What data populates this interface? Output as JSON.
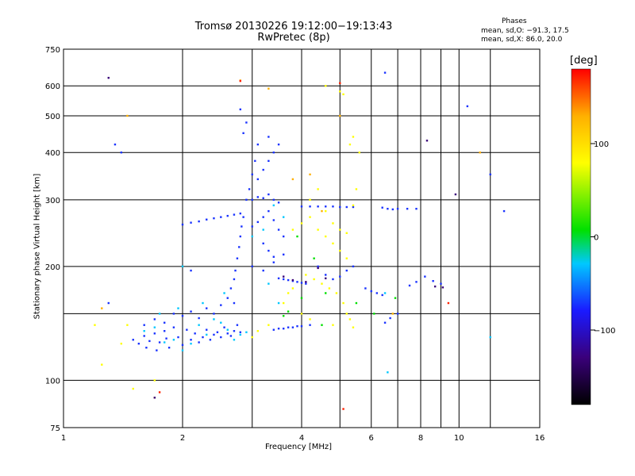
{
  "header": {
    "title_line1": "Tromsø 20130226 19:12:00−19:13:43",
    "title_line2": "RwPretec (8p)"
  },
  "phases_box": {
    "title": "Phases",
    "line_o": "mean, sd,O: −91.3, 17.5",
    "line_x": "mean, sd,X:  86.0, 20.0"
  },
  "chart_data": {
    "type": "scatter",
    "title": "Tromsø 20130226 19:12:00−19:13:43",
    "subtitle": "RwPretec (8p)",
    "xlabel": "Frequency [MHz]",
    "ylabel": "Stationary phase Virtual Height [km]",
    "x_scale": "log",
    "y_scale": "log",
    "xlim": [
      1,
      16
    ],
    "ylim": [
      75,
      750
    ],
    "x_ticks": [
      1,
      2,
      4,
      6,
      8,
      10,
      16
    ],
    "x_tick_labels": [
      "1",
      "2",
      "4",
      "6",
      "8",
      "10",
      "16"
    ],
    "x_grid": [
      2,
      3,
      4,
      5,
      6,
      7,
      8,
      9,
      10,
      12
    ],
    "y_ticks": [
      75,
      100,
      200,
      300,
      400,
      500,
      600,
      750
    ],
    "y_tick_labels": [
      "75",
      "100",
      "200",
      "300",
      "400",
      "500",
      "600",
      "750"
    ],
    "y_grid": [
      100,
      150,
      200,
      300,
      400,
      500,
      600
    ],
    "grid": true,
    "colorbar": {
      "label": "[deg]",
      "range": [
        -180,
        180
      ],
      "ticks": [
        100,
        0,
        -100
      ],
      "tick_labels": [
        "100",
        "0",
        "−100"
      ],
      "colors": [
        "#000000",
        "#3a007a",
        "#1a1aff",
        "#00c8ff",
        "#00e000",
        "#ffff00",
        "#ffb000",
        "#ff0000"
      ]
    },
    "series": [
      {
        "color": "#1a33ff",
        "points": [
          [
            1.5,
            128
          ],
          [
            1.55,
            125
          ],
          [
            1.6,
            131
          ],
          [
            1.62,
            122
          ],
          [
            1.65,
            127
          ],
          [
            1.7,
            133
          ],
          [
            1.72,
            120
          ],
          [
            1.75,
            126
          ],
          [
            1.8,
            135
          ],
          [
            1.82,
            129
          ],
          [
            1.85,
            122
          ],
          [
            1.9,
            138
          ],
          [
            1.95,
            130
          ],
          [
            2.0,
            124
          ],
          [
            2.05,
            136
          ],
          [
            2.1,
            128
          ],
          [
            2.15,
            133
          ],
          [
            2.2,
            126
          ],
          [
            2.25,
            130
          ],
          [
            2.3,
            136
          ],
          [
            2.35,
            128
          ],
          [
            2.4,
            132
          ],
          [
            2.45,
            134
          ],
          [
            2.5,
            130
          ],
          [
            2.55,
            138
          ],
          [
            2.6,
            133
          ],
          [
            2.65,
            131
          ],
          [
            2.7,
            135
          ],
          [
            2.75,
            140
          ],
          [
            2.8,
            134
          ],
          [
            1.6,
            140
          ],
          [
            1.7,
            145
          ],
          [
            1.8,
            142
          ],
          [
            1.9,
            150
          ],
          [
            2.0,
            148
          ],
          [
            2.1,
            152
          ],
          [
            2.2,
            146
          ],
          [
            2.3,
            155
          ],
          [
            2.4,
            150
          ],
          [
            2.5,
            158
          ],
          [
            2.6,
            165
          ],
          [
            2.65,
            175
          ],
          [
            2.7,
            185
          ],
          [
            2.72,
            195
          ],
          [
            2.75,
            210
          ],
          [
            2.78,
            225
          ],
          [
            2.8,
            240
          ],
          [
            2.82,
            255
          ],
          [
            2.85,
            270
          ],
          [
            2.7,
            160
          ],
          [
            2.9,
            300
          ],
          [
            2.95,
            320
          ],
          [
            3.0,
            350
          ],
          [
            3.05,
            380
          ],
          [
            3.1,
            420
          ],
          [
            2.85,
            450
          ],
          [
            2.8,
            520
          ],
          [
            2.9,
            480
          ],
          [
            2.0,
            258
          ],
          [
            2.1,
            261
          ],
          [
            2.2,
            263
          ],
          [
            2.3,
            266
          ],
          [
            2.4,
            268
          ],
          [
            2.5,
            270
          ],
          [
            2.6,
            272
          ],
          [
            2.7,
            274
          ],
          [
            2.8,
            276
          ],
          [
            3.0,
            255
          ],
          [
            3.1,
            262
          ],
          [
            3.2,
            270
          ],
          [
            3.3,
            280
          ],
          [
            3.4,
            265
          ],
          [
            3.5,
            250
          ],
          [
            3.6,
            240
          ],
          [
            3.2,
            230
          ],
          [
            3.3,
            220
          ],
          [
            3.4,
            212
          ],
          [
            3.0,
            300
          ],
          [
            3.1,
            305
          ],
          [
            3.2,
            303
          ],
          [
            3.3,
            310
          ],
          [
            3.4,
            300
          ],
          [
            3.5,
            295
          ],
          [
            3.0,
            200
          ],
          [
            3.2,
            195
          ],
          [
            3.4,
            205
          ],
          [
            3.6,
            215
          ],
          [
            3.2,
            360
          ],
          [
            3.3,
            380
          ],
          [
            3.4,
            400
          ],
          [
            3.5,
            420
          ],
          [
            3.3,
            440
          ],
          [
            3.1,
            340
          ],
          [
            3.5,
            186
          ],
          [
            3.6,
            185
          ],
          [
            3.7,
            184
          ],
          [
            3.8,
            183
          ],
          [
            3.9,
            182
          ],
          [
            4.0,
            181
          ],
          [
            4.1,
            180
          ],
          [
            3.4,
            136
          ],
          [
            3.5,
            137
          ],
          [
            3.6,
            137
          ],
          [
            3.7,
            138
          ],
          [
            3.8,
            138
          ],
          [
            3.9,
            139
          ],
          [
            4.0,
            139
          ],
          [
            4.2,
            140
          ],
          [
            4.0,
            288
          ],
          [
            4.2,
            288
          ],
          [
            4.4,
            288
          ],
          [
            4.6,
            288
          ],
          [
            4.8,
            288
          ],
          [
            5.0,
            287
          ],
          [
            5.2,
            287
          ],
          [
            5.4,
            287
          ],
          [
            4.4,
            200
          ],
          [
            4.6,
            190
          ],
          [
            4.8,
            185
          ],
          [
            5.0,
            188
          ],
          [
            5.2,
            195
          ],
          [
            5.4,
            200
          ],
          [
            5.8,
            175
          ],
          [
            6.0,
            172
          ],
          [
            6.2,
            170
          ],
          [
            6.4,
            168
          ],
          [
            6.4,
            286
          ],
          [
            6.6,
            284
          ],
          [
            6.8,
            283
          ],
          [
            7.0,
            284
          ],
          [
            7.4,
            284
          ],
          [
            7.8,
            284
          ],
          [
            7.5,
            178
          ],
          [
            7.8,
            182
          ],
          [
            8.2,
            188
          ],
          [
            8.6,
            183
          ],
          [
            9.0,
            180
          ],
          [
            6.5,
            142
          ],
          [
            6.7,
            146
          ],
          [
            7.0,
            150
          ],
          [
            1.3,
            160
          ],
          [
            1.35,
            420
          ],
          [
            1.4,
            400
          ],
          [
            2.1,
            195
          ],
          [
            6.5,
            650
          ],
          [
            10.5,
            530
          ],
          [
            12.0,
            350
          ],
          [
            13.0,
            280
          ]
        ]
      },
      {
        "color": "#00c8ff",
        "points": [
          [
            1.6,
            135
          ],
          [
            1.7,
            138
          ],
          [
            1.8,
            126
          ],
          [
            1.9,
            128
          ],
          [
            2.0,
            120
          ],
          [
            2.1,
            125
          ],
          [
            2.2,
            140
          ],
          [
            2.3,
            132
          ],
          [
            2.4,
            145
          ],
          [
            2.5,
            142
          ],
          [
            2.6,
            136
          ],
          [
            2.7,
            128
          ],
          [
            2.8,
            132
          ],
          [
            2.9,
            134
          ],
          [
            1.75,
            150
          ],
          [
            1.95,
            155
          ],
          [
            2.25,
            160
          ],
          [
            2.55,
            170
          ],
          [
            3.0,
            240
          ],
          [
            3.2,
            250
          ],
          [
            3.4,
            290
          ],
          [
            3.6,
            270
          ],
          [
            3.3,
            180
          ],
          [
            3.5,
            160
          ],
          [
            2.0,
            200
          ],
          [
            6.5,
            170
          ],
          [
            6.6,
            105
          ],
          [
            12,
            130
          ]
        ]
      },
      {
        "color": "#00e000",
        "points": [
          [
            3.6,
            148
          ],
          [
            3.7,
            152
          ],
          [
            4.0,
            165
          ],
          [
            4.3,
            210
          ],
          [
            4.6,
            170
          ],
          [
            3.9,
            240
          ],
          [
            5.5,
            160
          ],
          [
            6.1,
            150
          ],
          [
            6.9,
            165
          ],
          [
            4.5,
            140
          ]
        ]
      },
      {
        "color": "#ffff00",
        "points": [
          [
            3.8,
            250
          ],
          [
            4.0,
            260
          ],
          [
            4.2,
            270
          ],
          [
            4.4,
            250
          ],
          [
            4.6,
            240
          ],
          [
            4.8,
            230
          ],
          [
            5.0,
            220
          ],
          [
            5.2,
            210
          ],
          [
            4.2,
            300
          ],
          [
            4.4,
            320
          ],
          [
            4.6,
            280
          ],
          [
            4.8,
            260
          ],
          [
            5.0,
            250
          ],
          [
            5.2,
            245
          ],
          [
            5.4,
            290
          ],
          [
            5.5,
            320
          ],
          [
            5.3,
            420
          ],
          [
            5.4,
            440
          ],
          [
            5.6,
            400
          ],
          [
            5.0,
            580
          ],
          [
            5.1,
            570
          ],
          [
            4.1,
            190
          ],
          [
            4.3,
            185
          ],
          [
            4.5,
            180
          ],
          [
            4.7,
            175
          ],
          [
            4.9,
            170
          ],
          [
            5.1,
            160
          ],
          [
            5.2,
            150
          ],
          [
            5.3,
            145
          ],
          [
            3.6,
            160
          ],
          [
            3.7,
            170
          ],
          [
            3.8,
            175
          ],
          [
            4.0,
            150
          ],
          [
            4.2,
            145
          ],
          [
            4.8,
            140
          ],
          [
            5.4,
            138
          ],
          [
            3.0,
            130
          ],
          [
            3.1,
            135
          ],
          [
            3.3,
            140
          ],
          [
            1.2,
            140
          ],
          [
            1.25,
            110
          ],
          [
            1.4,
            125
          ],
          [
            1.45,
            140
          ],
          [
            1.5,
            95
          ],
          [
            1.7,
            100
          ],
          [
            4.6,
            600
          ]
        ]
      },
      {
        "color": "#ffb000",
        "points": [
          [
            1.25,
            155
          ],
          [
            2.8,
            620
          ],
          [
            3.3,
            590
          ],
          [
            3.8,
            340
          ],
          [
            4.2,
            350
          ],
          [
            4.5,
            280
          ],
          [
            5.0,
            500
          ],
          [
            1.45,
            500
          ],
          [
            1.7,
            90
          ],
          [
            6.8,
            150
          ],
          [
            11.3,
            400
          ]
        ]
      },
      {
        "color": "#ff2000",
        "points": [
          [
            2.8,
            618
          ],
          [
            5.0,
            610
          ],
          [
            5.1,
            84
          ],
          [
            1.75,
            93
          ],
          [
            9.4,
            160
          ]
        ]
      },
      {
        "color": "#3a007a",
        "points": [
          [
            3.6,
            188
          ],
          [
            3.8,
            184
          ],
          [
            4.1,
            182
          ],
          [
            4.4,
            198
          ],
          [
            4.6,
            186
          ],
          [
            8.7,
            177
          ],
          [
            9.1,
            176
          ],
          [
            1.3,
            630
          ],
          [
            1.7,
            90
          ],
          [
            8.3,
            430
          ],
          [
            9.8,
            310
          ]
        ]
      }
    ]
  }
}
